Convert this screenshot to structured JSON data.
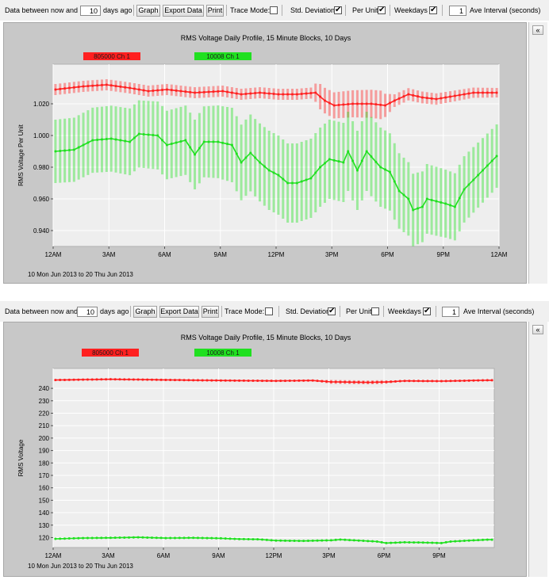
{
  "panels": [
    {
      "toolbar": {
        "label_between": "Data between now and",
        "days_value": "10",
        "label_days_ago": "days ago",
        "graph_button": "Graph",
        "export_button": "Export Data",
        "print_button": "Print",
        "trace_mode_label": "Trace Mode:",
        "trace_mode_checked": false,
        "std_dev_label": "Std. Deviation",
        "std_dev_checked": true,
        "per_unit_label": "Per Unit",
        "per_unit_checked": true,
        "weekdays_label": "Weekdays",
        "weekdays_checked": true,
        "interval_value": "1",
        "interval_label": "Ave Interval (seconds)"
      },
      "sidebar_button": "«",
      "date_range": "10 Mon Jun 2013   to   20 Thu Jun 2013",
      "chart_data": {
        "type": "line",
        "title": "RMS Voltage Daily Profile, 15 Minute Blocks, 10 Days",
        "ylabel": "RMS Voltage Per Unit",
        "xlabel": "",
        "xlim": [
          0,
          96
        ],
        "ylim": [
          0.93,
          1.045
        ],
        "yticks": [
          0.94,
          0.96,
          0.98,
          1.0,
          1.02
        ],
        "ytick_labels": [
          "0.940",
          "0.960",
          "0.980",
          "1.000",
          "1.020"
        ],
        "xticks": [
          0,
          12,
          24,
          36,
          48,
          60,
          72,
          84,
          96
        ],
        "xtick_labels": [
          "12AM",
          "3AM",
          "6AM",
          "9AM",
          "12PM",
          "3PM",
          "6PM",
          "9PM",
          "12AM"
        ],
        "grid": true,
        "legend_placement": "top-left",
        "std_deviation_bands": true,
        "series": [
          {
            "name": "805000 Ch 1",
            "color": "#ff2020",
            "keyframes": [
              [
                0,
                1.029
              ],
              [
                6,
                1.031
              ],
              [
                11,
                1.032
              ],
              [
                16,
                1.03
              ],
              [
                20,
                1.028
              ],
              [
                24,
                1.029
              ],
              [
                30,
                1.027
              ],
              [
                36,
                1.028
              ],
              [
                40,
                1.026
              ],
              [
                44,
                1.027
              ],
              [
                48,
                1.026
              ],
              [
                52,
                1.026
              ],
              [
                56,
                1.027
              ],
              [
                58,
                1.022
              ],
              [
                60,
                1.019
              ],
              [
                64,
                1.02
              ],
              [
                68,
                1.02
              ],
              [
                71,
                1.019
              ],
              [
                73,
                1.022
              ],
              [
                76,
                1.026
              ],
              [
                79,
                1.024
              ],
              [
                82,
                1.023
              ],
              [
                86,
                1.025
              ],
              [
                90,
                1.027
              ],
              [
                95,
                1.027
              ]
            ],
            "std_keyframes": [
              [
                0,
                0.0035
              ],
              [
                55,
                0.0035
              ],
              [
                57,
                0.008
              ],
              [
                70,
                0.009
              ],
              [
                73,
                0.004
              ],
              [
                95,
                0.003
              ]
            ]
          },
          {
            "name": "10008 Ch 1",
            "color": "#20e020",
            "keyframes": [
              [
                0,
                0.99
              ],
              [
                4,
                0.991
              ],
              [
                8,
                0.997
              ],
              [
                12,
                0.998
              ],
              [
                16,
                0.996
              ],
              [
                18,
                1.001
              ],
              [
                22,
                1.0
              ],
              [
                24,
                0.994
              ],
              [
                28,
                0.997
              ],
              [
                30,
                0.988
              ],
              [
                32,
                0.996
              ],
              [
                35,
                0.996
              ],
              [
                38,
                0.994
              ],
              [
                40,
                0.983
              ],
              [
                42,
                0.989
              ],
              [
                44,
                0.983
              ],
              [
                46,
                0.978
              ],
              [
                48,
                0.975
              ],
              [
                50,
                0.97
              ],
              [
                52,
                0.97
              ],
              [
                55,
                0.973
              ],
              [
                57,
                0.98
              ],
              [
                59,
                0.985
              ],
              [
                62,
                0.983
              ],
              [
                63,
                0.99
              ],
              [
                65,
                0.978
              ],
              [
                67,
                0.99
              ],
              [
                70,
                0.98
              ],
              [
                72,
                0.977
              ],
              [
                74,
                0.965
              ],
              [
                76,
                0.96
              ],
              [
                77,
                0.953
              ],
              [
                79,
                0.955
              ],
              [
                80,
                0.96
              ],
              [
                84,
                0.957
              ],
              [
                86,
                0.955
              ],
              [
                88,
                0.966
              ],
              [
                90,
                0.972
              ],
              [
                92,
                0.978
              ],
              [
                95,
                0.987
              ]
            ],
            "std_keyframes": [
              [
                0,
                0.02
              ],
              [
                30,
                0.022
              ],
              [
                46,
                0.025
              ],
              [
                70,
                0.025
              ],
              [
                80,
                0.022
              ],
              [
                95,
                0.02
              ]
            ]
          }
        ]
      }
    },
    {
      "toolbar": {
        "label_between": "Data between now and",
        "days_value": "10",
        "label_days_ago": "days ago",
        "graph_button": "Graph",
        "export_button": "Export Data",
        "print_button": "Print",
        "trace_mode_label": "Trace Mode:",
        "trace_mode_checked": false,
        "std_dev_label": "Std. Deviation",
        "std_dev_checked": true,
        "per_unit_label": "Per Unit",
        "per_unit_checked": false,
        "weekdays_label": "Weekdays",
        "weekdays_checked": true,
        "interval_value": "1",
        "interval_label": "Ave Interval (seconds)"
      },
      "sidebar_button": "«",
      "date_range": "10 Mon Jun 2013   to   20 Thu Jun 2013",
      "chart_data": {
        "type": "line",
        "title": "RMS Voltage Daily Profile, 15 Minute Blocks, 10 Days",
        "ylabel": "RMS Voltage",
        "xlabel": "",
        "xlim": [
          0,
          96
        ],
        "ylim": [
          112,
          256
        ],
        "yticks": [
          120,
          130,
          140,
          150,
          160,
          170,
          180,
          190,
          200,
          210,
          220,
          230,
          240
        ],
        "ytick_labels": [
          "120",
          "130",
          "140",
          "150",
          "160",
          "170",
          "180",
          "190",
          "200",
          "210",
          "220",
          "230",
          "240"
        ],
        "xticks": [
          0,
          12,
          24,
          36,
          48,
          60,
          72,
          84
        ],
        "xtick_labels": [
          "12AM",
          "3AM",
          "6AM",
          "9AM",
          "12PM",
          "3PM",
          "6PM",
          "9PM"
        ],
        "grid": true,
        "legend_placement": "top-left",
        "std_deviation_bands": true,
        "series": [
          {
            "name": "805000 Ch 1",
            "color": "#ff2020",
            "keyframes": [
              [
                0,
                246.7
              ],
              [
                12,
                247.3
              ],
              [
                24,
                246.8
              ],
              [
                36,
                246.3
              ],
              [
                48,
                246.0
              ],
              [
                56,
                246.3
              ],
              [
                60,
                245.2
              ],
              [
                68,
                244.8
              ],
              [
                72,
                245.1
              ],
              [
                76,
                246.0
              ],
              [
                84,
                245.8
              ],
              [
                94,
                246.5
              ]
            ],
            "std_keyframes": [
              [
                0,
                0.8
              ],
              [
                57,
                0.8
              ],
              [
                60,
                1.6
              ],
              [
                71,
                1.6
              ],
              [
                74,
                0.8
              ],
              [
                94,
                0.8
              ]
            ]
          },
          {
            "name": "10008 Ch 1",
            "color": "#20e020",
            "keyframes": [
              [
                0,
                119.0
              ],
              [
                6,
                119.6
              ],
              [
                12,
                119.8
              ],
              [
                18,
                120.2
              ],
              [
                24,
                119.6
              ],
              [
                30,
                119.8
              ],
              [
                36,
                119.4
              ],
              [
                40,
                118.8
              ],
              [
                44,
                118.6
              ],
              [
                48,
                117.6
              ],
              [
                54,
                117.3
              ],
              [
                60,
                117.8
              ],
              [
                62,
                118.4
              ],
              [
                66,
                117.6
              ],
              [
                70,
                116.8
              ],
              [
                72,
                115.6
              ],
              [
                76,
                116.2
              ],
              [
                80,
                116.0
              ],
              [
                84,
                115.6
              ],
              [
                86,
                116.8
              ],
              [
                90,
                117.6
              ],
              [
                94,
                118.3
              ]
            ],
            "std_keyframes": [
              [
                0,
                0.7
              ],
              [
                94,
                0.7
              ]
            ]
          }
        ]
      }
    }
  ]
}
